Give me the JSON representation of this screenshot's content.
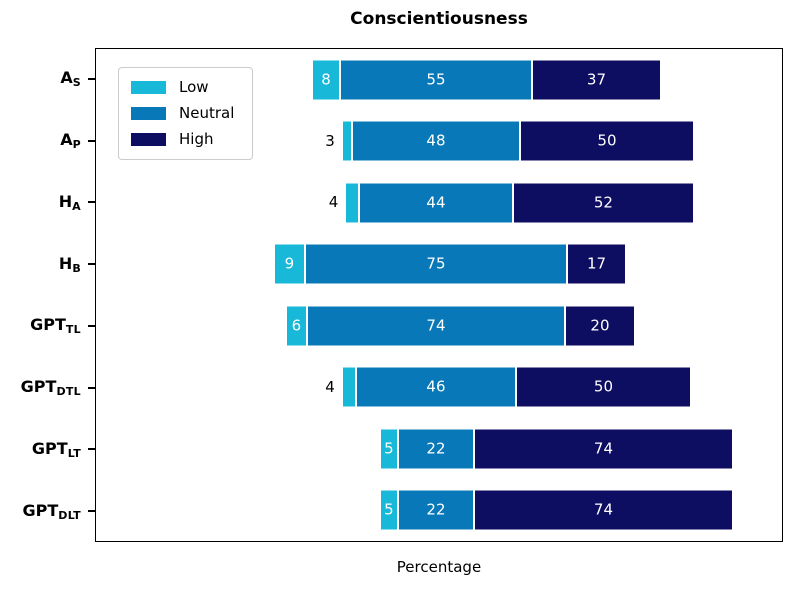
{
  "title": "Conscientiousness",
  "xlabel": "Percentage",
  "legend": {
    "items": [
      {
        "label": "Low",
        "color": "#17b8d8"
      },
      {
        "label": "Neutral",
        "color": "#0878b8"
      },
      {
        "label": "High",
        "color": "#0d0d62"
      }
    ]
  },
  "chart_data": {
    "type": "bar",
    "orientation": "horizontal",
    "stacked": true,
    "alignment": "diverging, centered on midpoint of Neutral segment",
    "title": "Conscientiousness",
    "xlabel": "Percentage",
    "legend_position": "upper-left inside plot",
    "axis_ticks": "y-axis category ticks only, no x-axis ticks shown",
    "series_names": [
      "Low",
      "Neutral",
      "High"
    ],
    "colors": {
      "low": "#17b8d8",
      "neutral": "#0878b8",
      "high": "#0d0d62"
    },
    "categories": [
      "A_S",
      "A_P",
      "H_A",
      "H_B",
      "GPT_TL",
      "GPT_DTL",
      "GPT_LT",
      "GPT_DLT"
    ],
    "rows": [
      {
        "label_base": "A",
        "label_sub": "S",
        "low": 8,
        "neutral": 55,
        "high": 37,
        "low_label_position": "inside"
      },
      {
        "label_base": "A",
        "label_sub": "P",
        "low": 3,
        "neutral": 48,
        "high": 50,
        "low_label_position": "outside"
      },
      {
        "label_base": "H",
        "label_sub": "A",
        "low": 4,
        "neutral": 44,
        "high": 52,
        "low_label_position": "outside"
      },
      {
        "label_base": "H",
        "label_sub": "B",
        "low": 9,
        "neutral": 75,
        "high": 17,
        "low_label_position": "inside"
      },
      {
        "label_base": "GPT",
        "label_sub": "TL",
        "low": 6,
        "neutral": 74,
        "high": 20,
        "low_label_position": "inside"
      },
      {
        "label_base": "GPT",
        "label_sub": "DTL",
        "low": 4,
        "neutral": 46,
        "high": 50,
        "low_label_position": "outside"
      },
      {
        "label_base": "GPT",
        "label_sub": "LT",
        "low": 5,
        "neutral": 22,
        "high": 74,
        "low_label_position": "inside"
      },
      {
        "label_base": "GPT",
        "label_sub": "DLT",
        "low": 5,
        "neutral": 22,
        "high": 74,
        "low_label_position": "inside"
      }
    ]
  }
}
